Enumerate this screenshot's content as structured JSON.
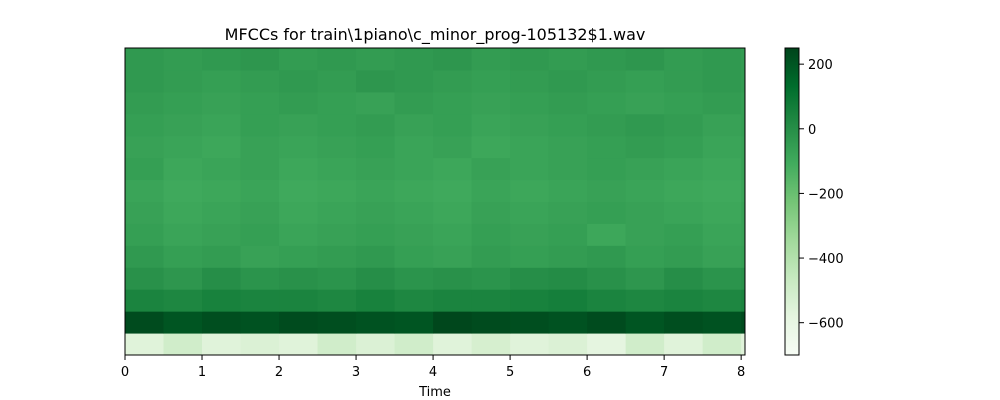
{
  "chart_data": {
    "type": "heatmap",
    "title": "MFCCs for train\\1piano\\c_minor_prog-105132$1.wav",
    "xlabel": "Time",
    "ylabel": "",
    "xlim": [
      0,
      8.05
    ],
    "x_ticks": [
      0,
      1,
      2,
      3,
      4,
      5,
      6,
      7,
      8
    ],
    "y_ticks_shown": false,
    "colormap": "Greens",
    "colorbar": {
      "range": [
        -700,
        250
      ],
      "ticks": [
        200,
        0,
        -200,
        -400,
        -600
      ],
      "tick_labels": [
        "200",
        "0",
        "−200",
        "−400",
        "−600"
      ]
    },
    "colors": {
      "low": "#f7fcf5",
      "high": "#00441b"
    },
    "time_columns": [
      0,
      0.5,
      1,
      1.5,
      2,
      2.5,
      3,
      3.5,
      4,
      4.5,
      5,
      5.5,
      6,
      6.5,
      7,
      7.5,
      8
    ],
    "coefficients": [
      [
        -560,
        -500,
        -560,
        -540,
        -560,
        -500,
        -540,
        -500,
        -560,
        -520,
        -560,
        -540,
        -580,
        -500,
        -560,
        -500,
        -560
      ],
      [
        230,
        200,
        220,
        210,
        230,
        220,
        210,
        200,
        240,
        230,
        220,
        210,
        230,
        200,
        220,
        210,
        230
      ],
      [
        40,
        30,
        50,
        40,
        40,
        30,
        50,
        30,
        40,
        40,
        50,
        60,
        40,
        30,
        40,
        30,
        40
      ],
      [
        -10,
        -30,
        0,
        -20,
        -10,
        -20,
        0,
        -20,
        -10,
        -20,
        0,
        10,
        -10,
        -30,
        0,
        -20,
        -10
      ],
      [
        -40,
        -60,
        -50,
        -70,
        -60,
        -50,
        -40,
        -60,
        -70,
        -50,
        -60,
        -50,
        -40,
        -60,
        -50,
        -70,
        -60
      ],
      [
        -60,
        -80,
        -70,
        -60,
        -80,
        -70,
        -60,
        -70,
        -80,
        -60,
        -70,
        -60,
        -90,
        -70,
        -60,
        -80,
        -70
      ],
      [
        -70,
        -90,
        -80,
        -70,
        -90,
        -80,
        -70,
        -80,
        -90,
        -70,
        -80,
        -70,
        -60,
        -70,
        -80,
        -90,
        -70
      ],
      [
        -80,
        -100,
        -90,
        -80,
        -100,
        -90,
        -80,
        -90,
        -100,
        -80,
        -90,
        -80,
        -70,
        -80,
        -90,
        -100,
        -80
      ],
      [
        -60,
        -90,
        -80,
        -70,
        -90,
        -80,
        -70,
        -80,
        -90,
        -70,
        -80,
        -70,
        -60,
        -70,
        -80,
        -90,
        -70
      ],
      [
        -70,
        -80,
        -90,
        -70,
        -80,
        -70,
        -60,
        -80,
        -70,
        -90,
        -80,
        -70,
        -60,
        -50,
        -60,
        -80,
        -70
      ],
      [
        -60,
        -70,
        -80,
        -60,
        -70,
        -60,
        -50,
        -70,
        -60,
        -80,
        -70,
        -60,
        -50,
        -40,
        -50,
        -70,
        -60
      ],
      [
        -50,
        -60,
        -70,
        -60,
        -50,
        -60,
        -70,
        -50,
        -60,
        -70,
        -60,
        -50,
        -60,
        -70,
        -60,
        -50,
        -60
      ],
      [
        -40,
        -50,
        -60,
        -50,
        -40,
        -50,
        -30,
        -40,
        -50,
        -60,
        -50,
        -40,
        -50,
        -60,
        -50,
        -40,
        -50
      ],
      [
        -40,
        -50,
        -40,
        -30,
        -50,
        -40,
        -50,
        -40,
        -30,
        -50,
        -40,
        -50,
        -40,
        -30,
        -50,
        -40,
        -50
      ]
    ]
  }
}
